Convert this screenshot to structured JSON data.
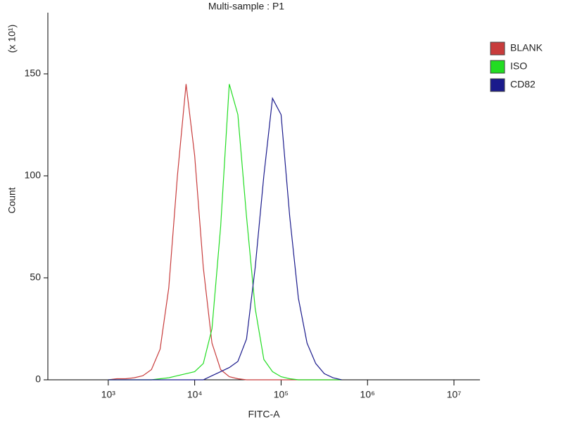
{
  "chart_data": {
    "type": "line",
    "title": "Multi-sample : P1",
    "x_label": "FITC-A",
    "y_label": "Count",
    "y_multiplier": "(x 10¹)",
    "xscale": "log",
    "xlim": [
      200,
      20000000
    ],
    "xticks": [
      {
        "value": 1000,
        "label": "10³"
      },
      {
        "value": 10000,
        "label": "10⁴"
      },
      {
        "value": 100000,
        "label": "10⁵"
      },
      {
        "value": 1000000,
        "label": "10⁶"
      },
      {
        "value": 10000000,
        "label": "10⁷"
      }
    ],
    "ylim": [
      0,
      180
    ],
    "yticks": [
      0,
      50,
      100,
      150
    ],
    "legend": "right",
    "x": [
      1000,
      1259,
      1585,
      1995,
      2512,
      3162,
      3981,
      5012,
      6310,
      7943,
      10000,
      12589,
      15849,
      19953,
      25119,
      31623,
      39811,
      50119,
      63096,
      79433,
      100000,
      125893,
      158489,
      199526,
      251189,
      316228,
      398107,
      501187
    ],
    "series": [
      {
        "name": "BLANK",
        "color": "#c83c3c",
        "values": [
          0,
          0.5,
          0.5,
          1,
          2,
          5,
          15,
          45,
          100,
          145,
          110,
          55,
          18,
          5,
          1.5,
          0.5,
          0,
          0,
          0,
          0,
          0,
          0,
          0,
          0,
          0,
          0,
          0,
          0
        ]
      },
      {
        "name": "ISO",
        "color": "#22dd22",
        "values": [
          0,
          0,
          0,
          0,
          0,
          0,
          0.5,
          1,
          2,
          3,
          4,
          8,
          25,
          75,
          145,
          130,
          80,
          35,
          10,
          4,
          1.5,
          0.5,
          0,
          0,
          0,
          0,
          0,
          0
        ]
      },
      {
        "name": "CD82",
        "color": "#1a1a8c",
        "values": [
          0,
          0,
          0,
          0,
          0,
          0,
          0,
          0,
          0,
          0,
          0,
          0,
          2,
          4,
          6,
          9,
          20,
          55,
          100,
          138,
          130,
          80,
          40,
          18,
          8,
          3,
          1,
          0
        ]
      }
    ]
  }
}
